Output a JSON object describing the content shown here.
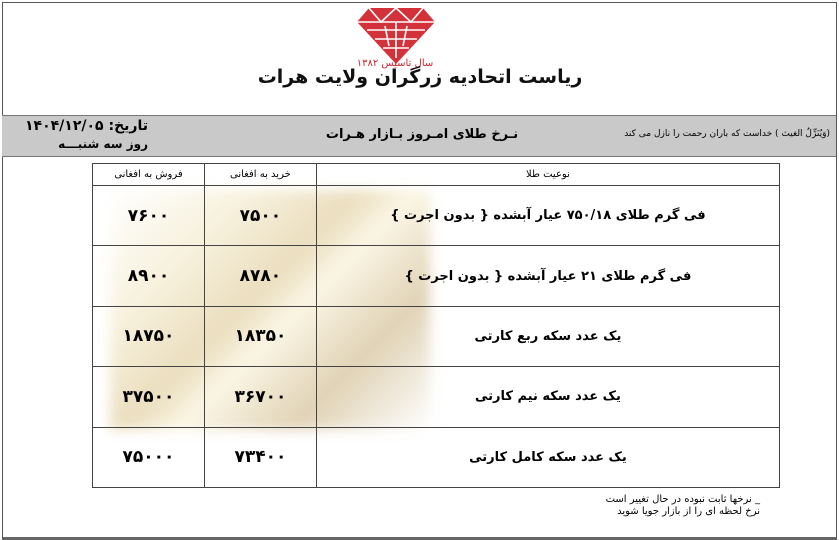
{
  "header": {
    "logo_text": "اتحادیه زرگران",
    "founded": "سال تاسیس ۱۳۸۲",
    "title": "ریاست اتحادیه زرگران ولایت هرات"
  },
  "band": {
    "date": "تاریخ: ۱۴۰۴/۱۲/۰۵",
    "day": "روز سه شنبـــه",
    "title": "نـرخ طلای امـروز بـازار هـرات",
    "verse": "(وَيُنَزِّلُ الغيث ) خداست كه باران رحمت را نازل مى كند"
  },
  "table": {
    "headers": [
      "نوعیت طلا",
      "خرید به افغانی",
      "فروش به افغانی"
    ],
    "rows": [
      {
        "type": "فی گرم طلای ۷۵۰/۱۸ عیار آبشده { بدون اجرت }",
        "buy": "۷۵۰۰",
        "sell": "۷۶۰۰"
      },
      {
        "type": "فی گرم طلای ۲۱ عیار آبشده { بدون اجرت }",
        "buy": "۸۷۸۰",
        "sell": "۸۹۰۰"
      },
      {
        "type": "یک عدد سکه ربع کارتی",
        "buy": "۱۸۳۵۰",
        "sell": "۱۸۷۵۰"
      },
      {
        "type": "یک عدد سکه نیم کارتی",
        "buy": "۳۶۷۰۰",
        "sell": "۳۷۵۰۰"
      },
      {
        "type": "یک عدد سکه کامل کارتی",
        "buy": "۷۳۴۰۰",
        "sell": "۷۵۰۰۰"
      }
    ]
  },
  "notes": [
    "_ نرخها ثابت نبوده در حال تغییر است",
    "نرخ لحظه ای را از بازار جویا شوید"
  ],
  "colors": {
    "logo": "#c8262e",
    "band": "#c9c9c9"
  }
}
